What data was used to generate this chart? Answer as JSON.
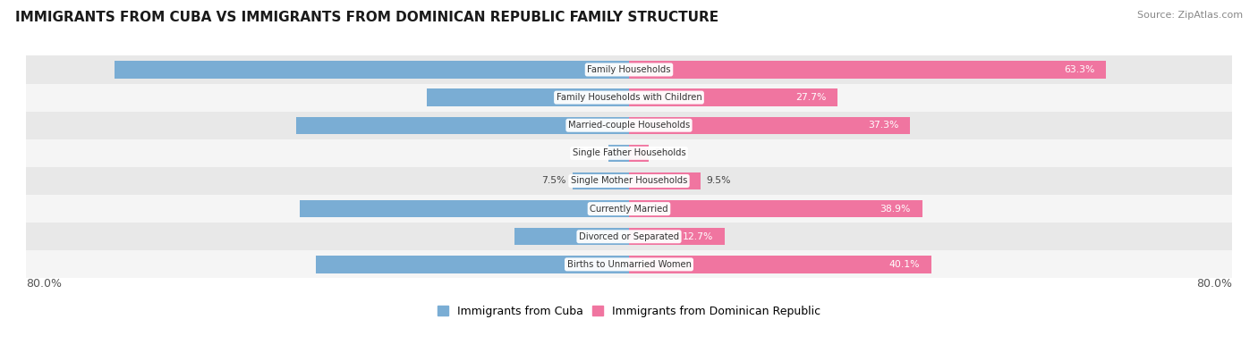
{
  "title": "IMMIGRANTS FROM CUBA VS IMMIGRANTS FROM DOMINICAN REPUBLIC FAMILY STRUCTURE",
  "source": "Source: ZipAtlas.com",
  "categories": [
    "Family Households",
    "Family Households with Children",
    "Married-couple Households",
    "Single Father Households",
    "Single Mother Households",
    "Currently Married",
    "Divorced or Separated",
    "Births to Unmarried Women"
  ],
  "cuba_values": [
    68.2,
    26.8,
    44.2,
    2.7,
    7.5,
    43.7,
    15.2,
    41.5
  ],
  "dominican_values": [
    63.3,
    27.7,
    37.3,
    2.6,
    9.5,
    38.9,
    12.7,
    40.1
  ],
  "max_val": 80.0,
  "cuba_color": "#7aadd4",
  "dominican_color": "#f075a0",
  "bar_height": 0.62,
  "row_bg_colors": [
    "#e8e8e8",
    "#f5f5f5",
    "#e8e8e8",
    "#f5f5f5",
    "#e8e8e8",
    "#f5f5f5",
    "#e8e8e8",
    "#f5f5f5"
  ],
  "legend_cuba": "Immigrants from Cuba",
  "legend_dominican": "Immigrants from Dominican Republic",
  "axis_label_left": "80.0%",
  "axis_label_right": "80.0%",
  "title_fontsize": 11,
  "source_fontsize": 8,
  "label_fontsize": 7.8,
  "category_fontsize": 7.2
}
